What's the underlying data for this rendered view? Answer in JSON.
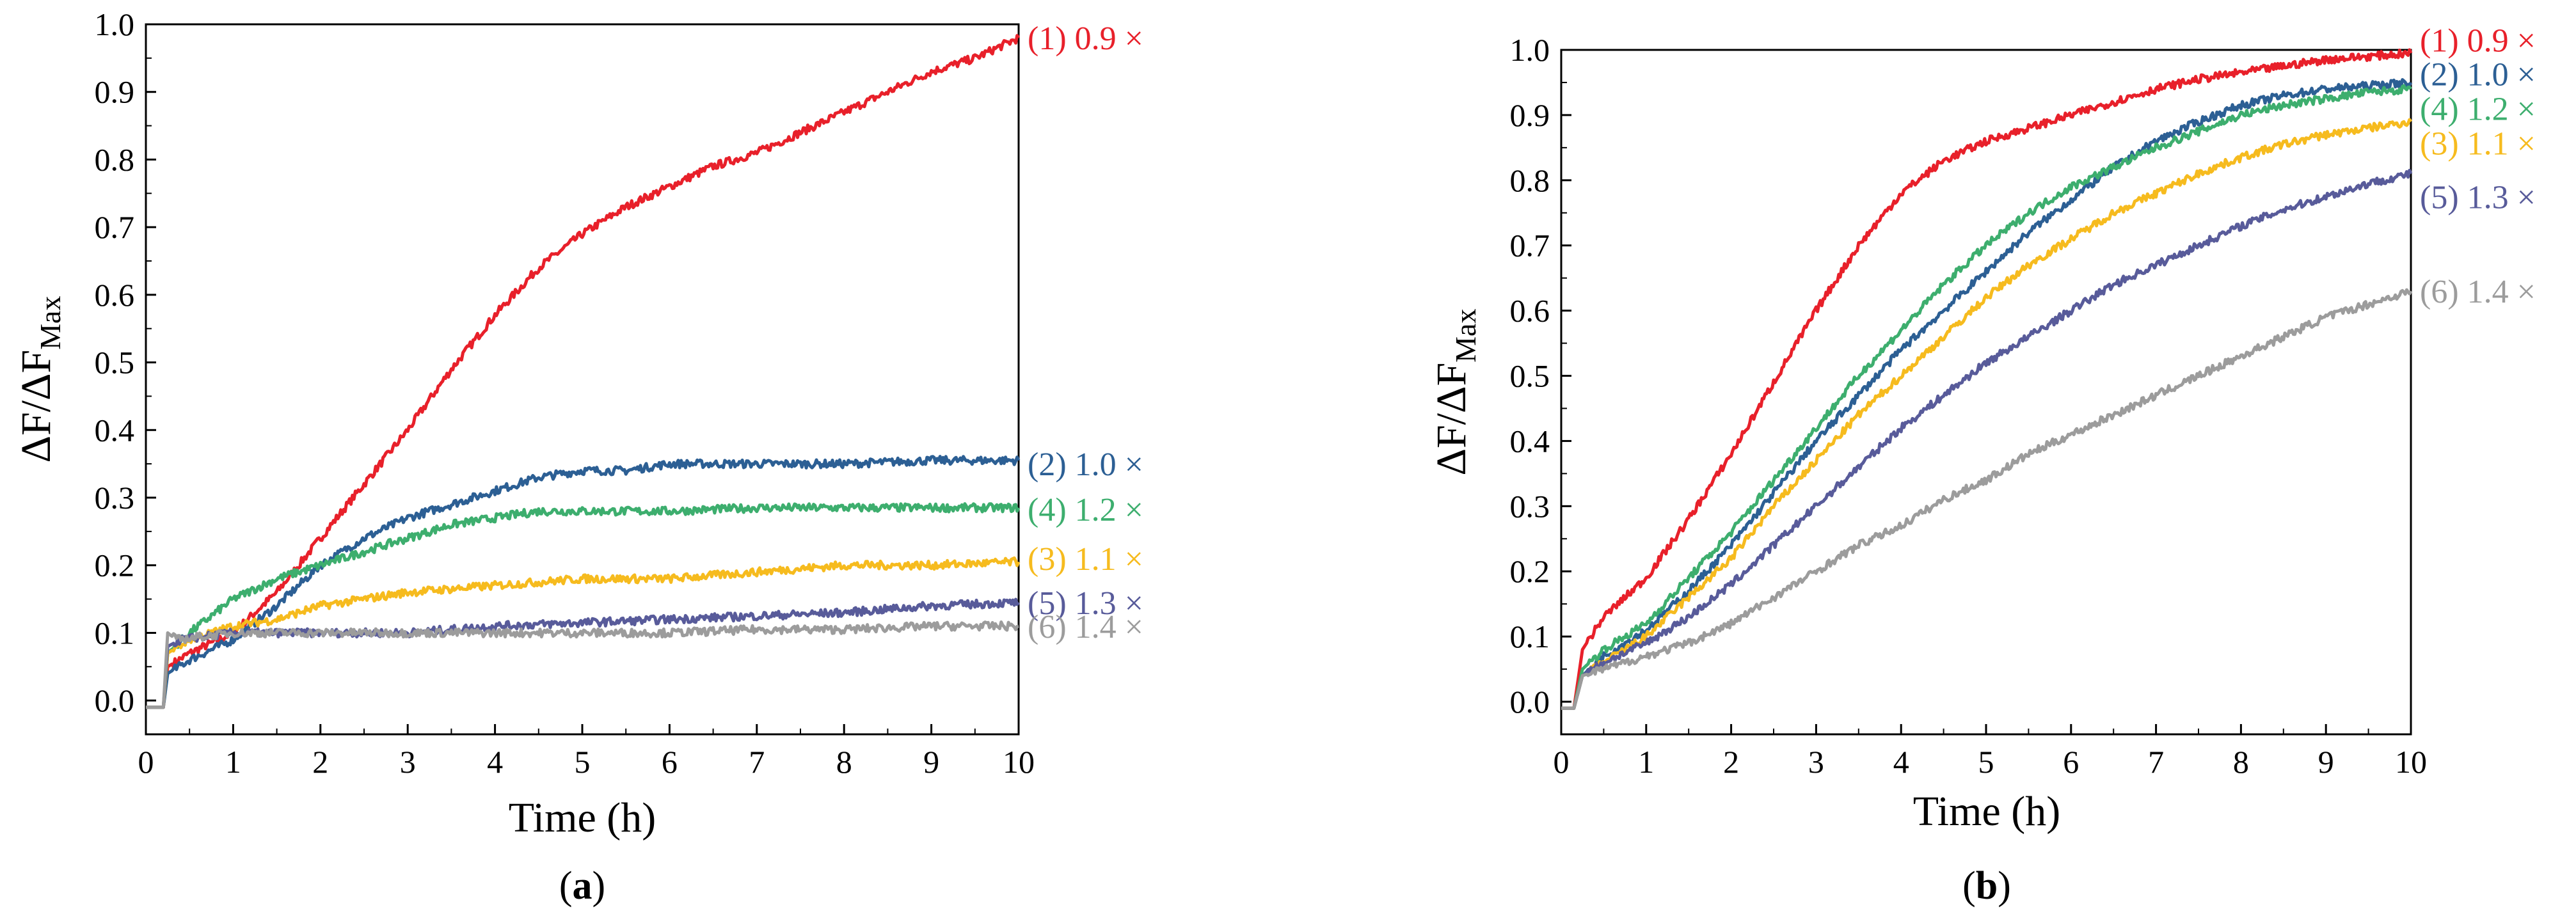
{
  "chart_data": [
    {
      "type": "line",
      "panel": "a",
      "panel_label": {
        "open": "(",
        "letter": "a",
        "close": ")"
      },
      "xlabel": "Time (h)",
      "ylabel": {
        "main": "ΔF/ΔF",
        "sub": "Max"
      },
      "xlim": [
        0,
        10
      ],
      "ylim": [
        -0.05,
        1.0
      ],
      "xticks": [
        "0",
        "1",
        "2",
        "3",
        "4",
        "5",
        "6",
        "7",
        "8",
        "9",
        "10"
      ],
      "yticks": [
        "0.0",
        "0.1",
        "0.2",
        "0.3",
        "0.4",
        "0.5",
        "0.6",
        "0.7",
        "0.8",
        "0.9",
        "1.0"
      ],
      "series": [
        {
          "name": "(1) 0.9 ×",
          "color": "#e8202a",
          "label_y": 0.98,
          "x": [
            0,
            0.2,
            0.25,
            0.5,
            1,
            1.5,
            2,
            2.5,
            3,
            3.5,
            4,
            4.5,
            5,
            5.5,
            6,
            6.5,
            7,
            7.5,
            8,
            8.5,
            9,
            9.5,
            10
          ],
          "y": [
            -0.01,
            -0.01,
            0.05,
            0.07,
            0.1,
            0.16,
            0.24,
            0.32,
            0.4,
            0.49,
            0.57,
            0.64,
            0.69,
            0.73,
            0.76,
            0.79,
            0.81,
            0.84,
            0.87,
            0.9,
            0.93,
            0.95,
            0.98
          ]
        },
        {
          "name": "(2) 1.0 ×",
          "color": "#2c5f94",
          "label_y": 0.35,
          "x": [
            0,
            0.2,
            0.25,
            0.5,
            1,
            1.5,
            2,
            2.5,
            3,
            3.5,
            4,
            4.5,
            5,
            5.5,
            6,
            7,
            8,
            9,
            10
          ],
          "y": [
            -0.01,
            -0.01,
            0.04,
            0.06,
            0.09,
            0.14,
            0.2,
            0.24,
            0.27,
            0.29,
            0.31,
            0.33,
            0.34,
            0.34,
            0.35,
            0.35,
            0.35,
            0.355,
            0.355
          ]
        },
        {
          "name": "(4) 1.2 ×",
          "color": "#3dae6e",
          "label_y": 0.283,
          "x": [
            0,
            0.2,
            0.25,
            0.5,
            1,
            1.5,
            2,
            2.5,
            3,
            3.5,
            4,
            4.5,
            5,
            6,
            7,
            8,
            9,
            10
          ],
          "y": [
            -0.01,
            -0.01,
            0.07,
            0.1,
            0.15,
            0.18,
            0.2,
            0.22,
            0.24,
            0.26,
            0.27,
            0.28,
            0.28,
            0.28,
            0.285,
            0.285,
            0.285,
            0.285
          ]
        },
        {
          "name": "(3) 1.1 ×",
          "color": "#f6bb1e",
          "label_y": 0.21,
          "x": [
            0,
            0.2,
            0.25,
            0.5,
            1,
            1.5,
            2,
            3,
            4,
            5,
            6,
            7,
            8,
            9,
            10
          ],
          "y": [
            -0.01,
            -0.01,
            0.07,
            0.09,
            0.11,
            0.12,
            0.14,
            0.16,
            0.17,
            0.18,
            0.18,
            0.19,
            0.2,
            0.2,
            0.205
          ]
        },
        {
          "name": "(5) 1.3 ×",
          "color": "#585b9a",
          "label_y": 0.145,
          "x": [
            0,
            0.2,
            0.25,
            0.4,
            1,
            2,
            3,
            4,
            5,
            6,
            7,
            8,
            9,
            10
          ],
          "y": [
            -0.01,
            -0.01,
            0.08,
            0.09,
            0.1,
            0.1,
            0.1,
            0.11,
            0.115,
            0.12,
            0.125,
            0.13,
            0.14,
            0.145
          ]
        },
        {
          "name": "(6) 1.4 ×",
          "color": "#9c9c9c",
          "label_y": 0.11,
          "x": [
            0,
            0.2,
            0.25,
            0.35,
            1,
            2,
            3,
            4,
            5,
            6,
            7,
            8,
            9,
            10
          ],
          "y": [
            -0.01,
            -0.01,
            0.1,
            0.09,
            0.1,
            0.1,
            0.1,
            0.1,
            0.1,
            0.1,
            0.105,
            0.105,
            0.11,
            0.11
          ]
        }
      ]
    },
    {
      "type": "line",
      "panel": "b",
      "panel_label": {
        "open": "(",
        "letter": "b",
        "close": ")"
      },
      "xlabel": "Time (h)",
      "ylabel": {
        "main": "ΔF/ΔF",
        "sub": "Max"
      },
      "xlim": [
        0,
        10
      ],
      "ylim": [
        -0.05,
        1.0
      ],
      "xticks": [
        "0",
        "1",
        "2",
        "3",
        "4",
        "5",
        "6",
        "7",
        "8",
        "9",
        "10"
      ],
      "yticks": [
        "0.0",
        "0.1",
        "0.2",
        "0.3",
        "0.4",
        "0.5",
        "0.6",
        "0.7",
        "0.8",
        "0.9",
        "1.0"
      ],
      "series": [
        {
          "name": "(1) 0.9 ×",
          "color": "#e8202a",
          "label_y": 1.015,
          "x": [
            0,
            0.15,
            0.25,
            0.5,
            1,
            1.5,
            2,
            2.5,
            3,
            3.5,
            4,
            4.5,
            5,
            5.5,
            6,
            6.5,
            7,
            7.5,
            8,
            8.5,
            9,
            9.5,
            10
          ],
          "y": [
            -0.01,
            -0.01,
            0.08,
            0.13,
            0.19,
            0.28,
            0.38,
            0.49,
            0.6,
            0.7,
            0.78,
            0.83,
            0.86,
            0.88,
            0.9,
            0.92,
            0.94,
            0.955,
            0.965,
            0.975,
            0.985,
            0.99,
            0.995
          ]
        },
        {
          "name": "(2) 1.0 ×",
          "color": "#2c5f94",
          "label_y": 0.963,
          "x": [
            0,
            0.15,
            0.25,
            0.5,
            1,
            1.5,
            2,
            2.5,
            3,
            3.5,
            4,
            4.5,
            5,
            5.5,
            6,
            6.5,
            7,
            7.5,
            8,
            8.5,
            9,
            9.5,
            10
          ],
          "y": [
            -0.01,
            -0.01,
            0.04,
            0.07,
            0.11,
            0.17,
            0.24,
            0.32,
            0.4,
            0.47,
            0.54,
            0.6,
            0.66,
            0.72,
            0.77,
            0.82,
            0.86,
            0.89,
            0.915,
            0.93,
            0.94,
            0.945,
            0.95
          ]
        },
        {
          "name": "(4) 1.2 ×",
          "color": "#3dae6e",
          "label_y": 0.91,
          "x": [
            0,
            0.15,
            0.25,
            0.5,
            1,
            1.5,
            2,
            2.5,
            3,
            3.5,
            4,
            4.5,
            5,
            5.5,
            6,
            6.5,
            7,
            7.5,
            8,
            8.5,
            9,
            9.5,
            10
          ],
          "y": [
            -0.01,
            -0.01,
            0.05,
            0.08,
            0.12,
            0.19,
            0.26,
            0.34,
            0.42,
            0.5,
            0.57,
            0.64,
            0.7,
            0.75,
            0.79,
            0.82,
            0.85,
            0.875,
            0.9,
            0.915,
            0.925,
            0.935,
            0.94
          ]
        },
        {
          "name": "(3) 1.1 ×",
          "color": "#f6bb1e",
          "label_y": 0.857,
          "x": [
            0,
            0.15,
            0.25,
            0.5,
            1,
            1.5,
            2,
            2.5,
            3,
            3.5,
            4,
            4.5,
            5,
            5.5,
            6,
            6.5,
            7,
            7.5,
            8,
            8.5,
            9,
            9.5,
            10
          ],
          "y": [
            -0.01,
            -0.01,
            0.04,
            0.06,
            0.1,
            0.16,
            0.22,
            0.3,
            0.37,
            0.44,
            0.5,
            0.56,
            0.62,
            0.67,
            0.71,
            0.75,
            0.78,
            0.81,
            0.835,
            0.855,
            0.87,
            0.88,
            0.89
          ]
        },
        {
          "name": "(5) 1.3 ×",
          "color": "#585b9a",
          "label_y": 0.775,
          "x": [
            0,
            0.15,
            0.25,
            0.5,
            1,
            1.5,
            2,
            2.5,
            3,
            3.5,
            4,
            4.5,
            5,
            5.5,
            6,
            6.5,
            7,
            7.5,
            8,
            8.5,
            9,
            9.5,
            10
          ],
          "y": [
            -0.01,
            -0.01,
            0.04,
            0.06,
            0.09,
            0.13,
            0.18,
            0.24,
            0.3,
            0.36,
            0.42,
            0.47,
            0.52,
            0.56,
            0.6,
            0.64,
            0.67,
            0.7,
            0.73,
            0.755,
            0.775,
            0.795,
            0.81
          ]
        },
        {
          "name": "(6) 1.4 ×",
          "color": "#9c9c9c",
          "label_y": 0.63,
          "x": [
            0,
            0.15,
            0.25,
            0.5,
            1,
            1.5,
            2,
            2.5,
            3,
            3.5,
            4,
            4.5,
            5,
            5.5,
            6,
            6.5,
            7,
            7.5,
            8,
            8.5,
            9,
            9.5,
            10
          ],
          "y": [
            -0.01,
            -0.01,
            0.04,
            0.05,
            0.07,
            0.09,
            0.12,
            0.16,
            0.2,
            0.24,
            0.27,
            0.31,
            0.34,
            0.38,
            0.41,
            0.44,
            0.47,
            0.5,
            0.53,
            0.56,
            0.59,
            0.61,
            0.63
          ]
        }
      ]
    }
  ]
}
